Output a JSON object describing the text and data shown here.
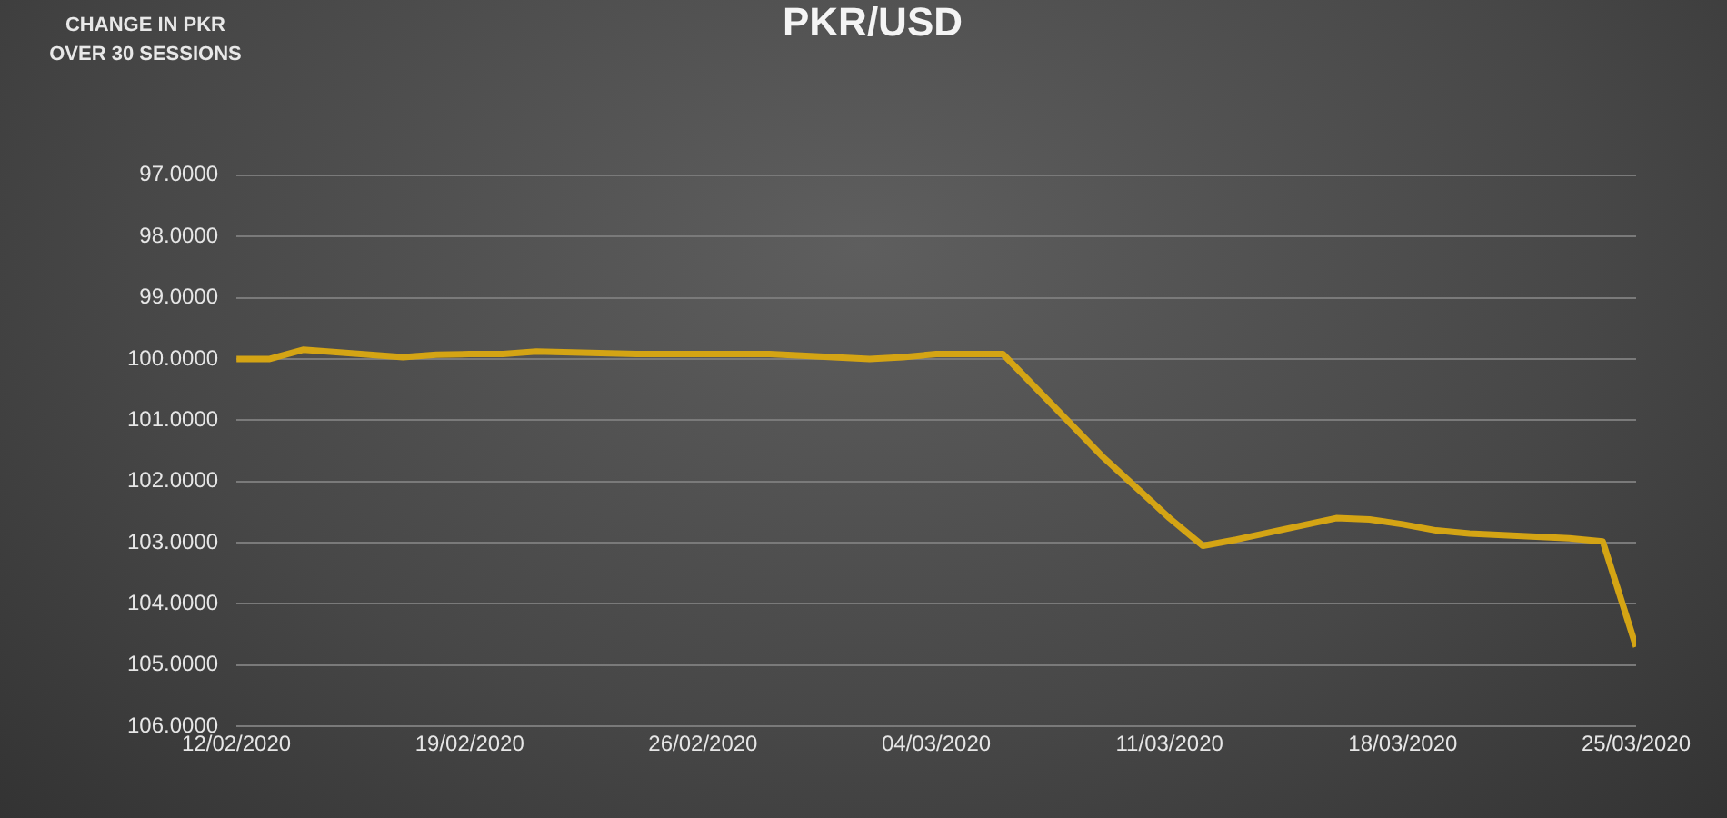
{
  "chart_data": {
    "type": "line",
    "title": "PKR/USD",
    "ylabel": "CHANGE IN PKR OVER 30 SESSIONS",
    "x": [
      "2020-02-12",
      "2020-02-13",
      "2020-02-14",
      "2020-02-17",
      "2020-02-18",
      "2020-02-19",
      "2020-02-20",
      "2020-02-21",
      "2020-02-24",
      "2020-02-25",
      "2020-02-26",
      "2020-02-27",
      "2020-02-28",
      "2020-03-02",
      "2020-03-03",
      "2020-03-04",
      "2020-03-05",
      "2020-03-06",
      "2020-03-09",
      "2020-03-10",
      "2020-03-11",
      "2020-03-12",
      "2020-03-13",
      "2020-03-16",
      "2020-03-17",
      "2020-03-18",
      "2020-03-19",
      "2020-03-20",
      "2020-03-23",
      "2020-03-24",
      "2020-03-25"
    ],
    "series": [
      {
        "color": "#d4a414",
        "values": [
          100.0,
          100.0,
          99.85,
          99.97,
          99.93,
          99.92,
          99.92,
          99.88,
          99.92,
          99.92,
          99.92,
          99.92,
          99.92,
          100.0,
          99.97,
          99.92,
          99.92,
          99.92,
          101.6,
          102.1,
          102.6,
          103.05,
          102.95,
          102.6,
          102.62,
          102.7,
          102.8,
          102.85,
          102.93,
          102.98,
          104.7
        ]
      }
    ],
    "xlim": [
      "2020-02-12",
      "2020-03-25"
    ],
    "xticks": [
      {
        "value": "2020-02-12",
        "label": "12/02/2020"
      },
      {
        "value": "2020-02-19",
        "label": "19/02/2020"
      },
      {
        "value": "2020-02-26",
        "label": "26/02/2020"
      },
      {
        "value": "2020-03-04",
        "label": "04/03/2020"
      },
      {
        "value": "2020-03-11",
        "label": "11/03/2020"
      },
      {
        "value": "2020-03-18",
        "label": "18/03/2020"
      },
      {
        "value": "2020-03-25",
        "label": "25/03/2020"
      }
    ],
    "ylim": [
      106,
      97
    ],
    "yticks": [
      {
        "value": 97,
        "label": "97.0000"
      },
      {
        "value": 98,
        "label": "98.0000"
      },
      {
        "value": 99,
        "label": "99.0000"
      },
      {
        "value": 100,
        "label": "100.0000"
      },
      {
        "value": 101,
        "label": "101.0000"
      },
      {
        "value": 102,
        "label": "102.0000"
      },
      {
        "value": 103,
        "label": "103.0000"
      },
      {
        "value": 104,
        "label": "104.0000"
      },
      {
        "value": 105,
        "label": "105.0000"
      },
      {
        "value": 106,
        "label": "106.0000"
      }
    ],
    "grid": "y",
    "legend": false,
    "marker": "none",
    "line_style": "solid"
  }
}
